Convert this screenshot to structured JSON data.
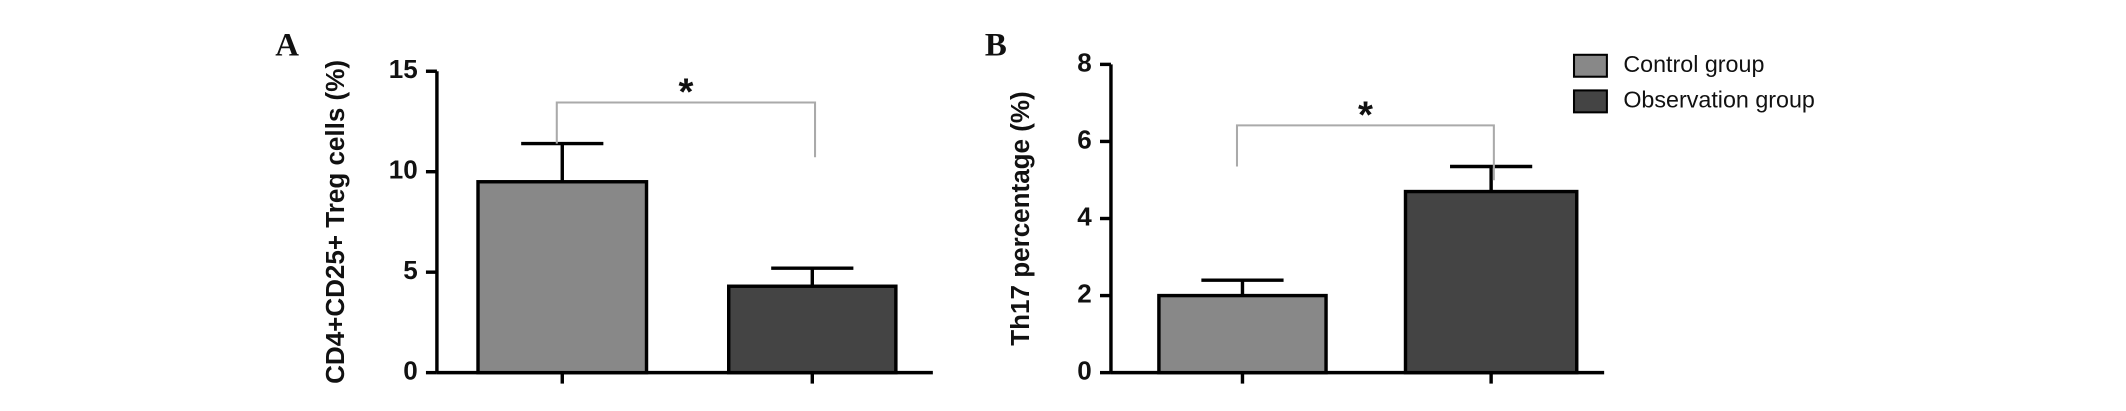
{
  "chart_data": [
    {
      "type": "bar",
      "panel_label": "A",
      "ylabel": "CD4+CD25+ Treg cells (%)",
      "series": [
        {
          "color": "#888888",
          "values": [
            9.5
          ],
          "errors": [
            1.9
          ]
        },
        {
          "color": "#444444",
          "values": [
            4.3
          ],
          "errors": [
            0.9
          ]
        }
      ],
      "annotation": "*",
      "ylim": [
        0,
        15
      ],
      "yticks": [
        0,
        5,
        10,
        15
      ]
    },
    {
      "type": "bar",
      "panel_label": "B",
      "ylabel": "Th17 percentage (%)",
      "series": [
        {
          "name": "Control group",
          "color": "#888888",
          "values": [
            2.0
          ],
          "errors": [
            0.4
          ]
        },
        {
          "name": "Observation group",
          "color": "#444444",
          "values": [
            4.7
          ],
          "errors": [
            0.65
          ]
        }
      ],
      "annotation": "*",
      "ylim": [
        0,
        8
      ],
      "yticks": [
        0,
        2,
        4,
        6,
        8
      ]
    }
  ]
}
